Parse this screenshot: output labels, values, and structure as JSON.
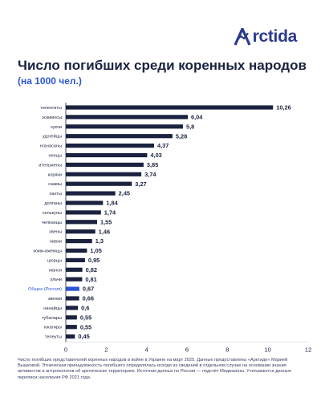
{
  "brand": {
    "name": "rctida",
    "accent": "#2d56d6"
  },
  "header": {
    "title": "Число погибших среди коренных народов",
    "subtitle": "(на 1000 чел.)"
  },
  "chart_data": {
    "type": "bar",
    "orientation": "horizontal",
    "title": "Число погибших среди коренных народов",
    "subtitle": "(на 1000 чел.)",
    "categories": [
      "теленгиты",
      "эскимосы",
      "чукчи",
      "удэгейцы",
      "нганасаны",
      "ненцы",
      "ительмены",
      "коряки",
      "саамы",
      "ханты",
      "долганы",
      "селькупы",
      "челканцы",
      "эвены",
      "нивхи",
      "коми-ижемцы",
      "шорцы",
      "манси",
      "ульчи",
      "Общее (Россия)",
      "эвенки",
      "нанайцы",
      "тубалары",
      "юкагиры",
      "телеуты"
    ],
    "values": [
      10.26,
      6.04,
      5.8,
      5.28,
      4.37,
      4.03,
      3.85,
      3.74,
      3.27,
      2.45,
      1.84,
      1.74,
      1.55,
      1.46,
      1.3,
      1.05,
      0.95,
      0.82,
      0.81,
      0.67,
      0.66,
      0.6,
      0.55,
      0.55,
      0.45
    ],
    "value_labels": [
      "10,26",
      "6,04",
      "5,8",
      "5,28",
      "4,37",
      "4,03",
      "3,85",
      "3,74",
      "3,27",
      "2,45",
      "1,84",
      "1,74",
      "1,55",
      "1,46",
      "1,3",
      "1,05",
      "0,95",
      "0,82",
      "0,81",
      "0,67",
      "0,66",
      "0,6",
      "0,55",
      "0,55",
      "0,45"
    ],
    "highlight_category": "Общее (Россия)",
    "xlim": [
      0,
      12
    ],
    "xticks": [
      0,
      2,
      4,
      6,
      8,
      10,
      12
    ],
    "grid": false,
    "colors": {
      "bar": "#1b2240",
      "highlight": "#2d56d6",
      "highlight_label": "#2d56d6"
    }
  },
  "footnote": "Число погибших представителей коренных народов в войне в Украине на март 2025. Данные предоставлены «Арктидe» Марией Вышковой. Этническая принадлежность погибшего определялась исходя из сведений в отдельном случае на основании знания активистов и антропологов об арктических территориях. Источник данных по России — подсчёт Медиазоны. Учитываются данные переписи населения РФ 2021 года."
}
